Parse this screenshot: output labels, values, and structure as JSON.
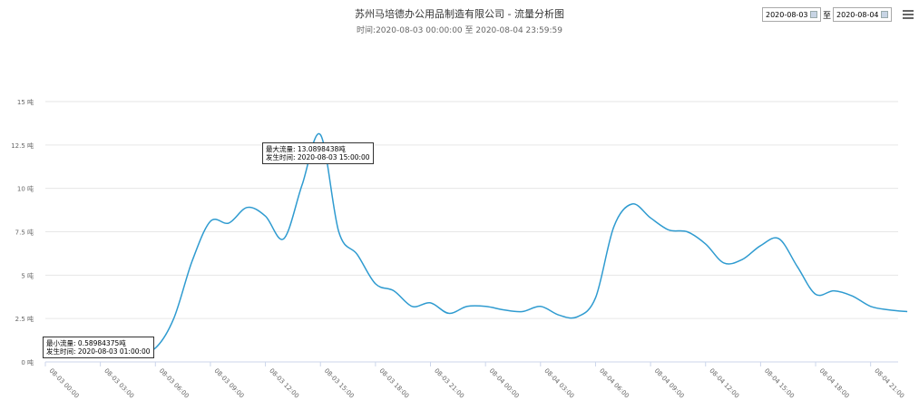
{
  "header": {
    "title": "苏州马培德办公用品制造有限公司 - 流量分析图",
    "subtitle": "时间:2020-08-03 00:00:00 至 2020-08-04 23:59:59"
  },
  "date_range": {
    "start": "2020-08-03",
    "separator": "至",
    "end": "2020-08-04"
  },
  "menu_icon": "hamburger-menu-icon",
  "tooltips": {
    "max": {
      "line1": "最大流量: 13.0898438吨",
      "line2": "发生时间: 2020-08-03 15:00:00"
    },
    "min": {
      "line1": "最小流量: 0.58984375吨",
      "line2": "发生时间: 2020-08-03 01:00:00"
    }
  },
  "chart_data": {
    "type": "line",
    "line_color": "#2f9bd0",
    "grid": true,
    "ylim": [
      0,
      15
    ],
    "y_ticks": [
      "0 吨",
      "2.5 吨",
      "5 吨",
      "7.5 吨",
      "10 吨",
      "12.5 吨",
      "15 吨"
    ],
    "x_ticks": [
      "08-03 00:00",
      "08-03 03:00",
      "08-03 06:00",
      "08-03 09:00",
      "08-03 12:00",
      "08-03 15:00",
      "08-03 18:00",
      "08-03 21:00",
      "08-04 00:00",
      "08-04 03:00",
      "08-04 06:00",
      "08-04 09:00",
      "08-04 12:00",
      "08-04 15:00",
      "08-04 18:00",
      "08-04 21:00"
    ],
    "series": [
      {
        "x": [
          "08-03 01:00",
          "08-03 02:00",
          "08-03 03:00",
          "08-03 04:00",
          "08-03 05:00",
          "08-03 06:00",
          "08-03 07:00",
          "08-03 08:00",
          "08-03 09:00",
          "08-03 10:00",
          "08-03 11:00",
          "08-03 12:00",
          "08-03 13:00",
          "08-03 14:00",
          "08-03 15:00",
          "08-03 16:00",
          "08-03 17:00",
          "08-03 18:00",
          "08-03 19:00",
          "08-03 20:00",
          "08-03 21:00",
          "08-03 22:00",
          "08-03 23:00",
          "08-04 00:00",
          "08-04 01:00",
          "08-04 02:00",
          "08-04 03:00",
          "08-04 04:00",
          "08-04 05:00",
          "08-04 06:00",
          "08-04 07:00",
          "08-04 08:00",
          "08-04 09:00",
          "08-04 10:00",
          "08-04 11:00",
          "08-04 12:00",
          "08-04 13:00",
          "08-04 14:00",
          "08-04 15:00",
          "08-04 16:00",
          "08-04 17:00",
          "08-04 18:00",
          "08-04 19:00",
          "08-04 20:00",
          "08-04 21:00",
          "08-04 22:00",
          "08-04 23:00"
        ],
        "values": [
          0.59,
          0.59,
          0.59,
          0.6,
          0.6,
          0.8,
          2.5,
          5.8,
          8.1,
          8.0,
          8.9,
          8.4,
          7.1,
          10.2,
          13.09,
          7.5,
          6.2,
          4.5,
          4.1,
          3.2,
          3.4,
          2.8,
          3.2,
          3.2,
          3.0,
          2.9,
          3.2,
          2.7,
          2.6,
          3.7,
          7.8,
          9.1,
          8.3,
          7.6,
          7.5,
          6.8,
          5.7,
          5.9,
          6.7,
          7.1,
          5.5,
          3.9,
          4.1,
          3.8,
          3.2,
          3.0,
          2.9
        ]
      }
    ]
  }
}
